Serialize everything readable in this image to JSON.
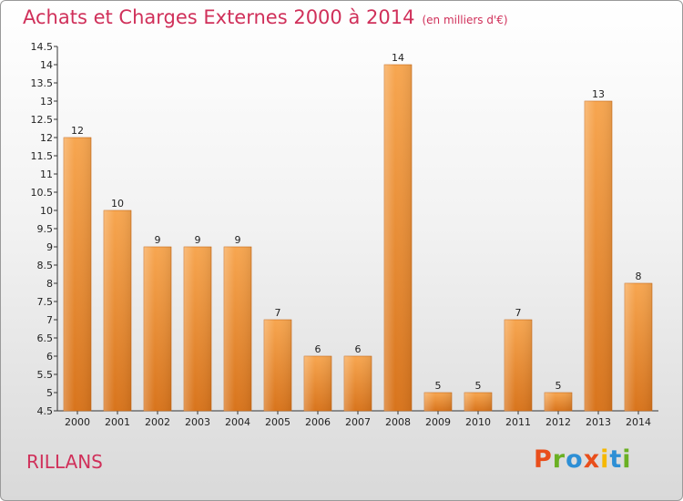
{
  "chart_data": {
    "type": "bar",
    "title": "Achats et Charges Externes 2000 à 2014",
    "unit_label": "(en milliers d'€)",
    "categories": [
      "2000",
      "2001",
      "2002",
      "2003",
      "2004",
      "2005",
      "2006",
      "2007",
      "2008",
      "2009",
      "2010",
      "2011",
      "2012",
      "2013",
      "2014"
    ],
    "values": [
      12,
      10,
      9,
      9,
      9,
      7,
      6,
      6,
      14,
      5,
      5,
      7,
      5,
      13,
      8
    ],
    "ylim": [
      4.5,
      14.5
    ],
    "yticks": [
      "4.5",
      "5",
      "5.5",
      "6",
      "6.5",
      "7",
      "7.5",
      "8",
      "8.5",
      "9",
      "9.5",
      "10",
      "10.5",
      "11",
      "11.5",
      "12",
      "12.5",
      "13",
      "13.5",
      "14",
      "14.5"
    ],
    "grid": false,
    "bar_color": "#f0902f"
  },
  "place": "RILLANS",
  "logo": {
    "letters": [
      "P",
      "r",
      "o",
      "x",
      "i",
      "t",
      "i"
    ],
    "colors": [
      "#e94e1b",
      "#6ab023",
      "#2d8fd5",
      "#e94e1b",
      "#f6b800",
      "#2d8fd5",
      "#6ab023"
    ]
  }
}
